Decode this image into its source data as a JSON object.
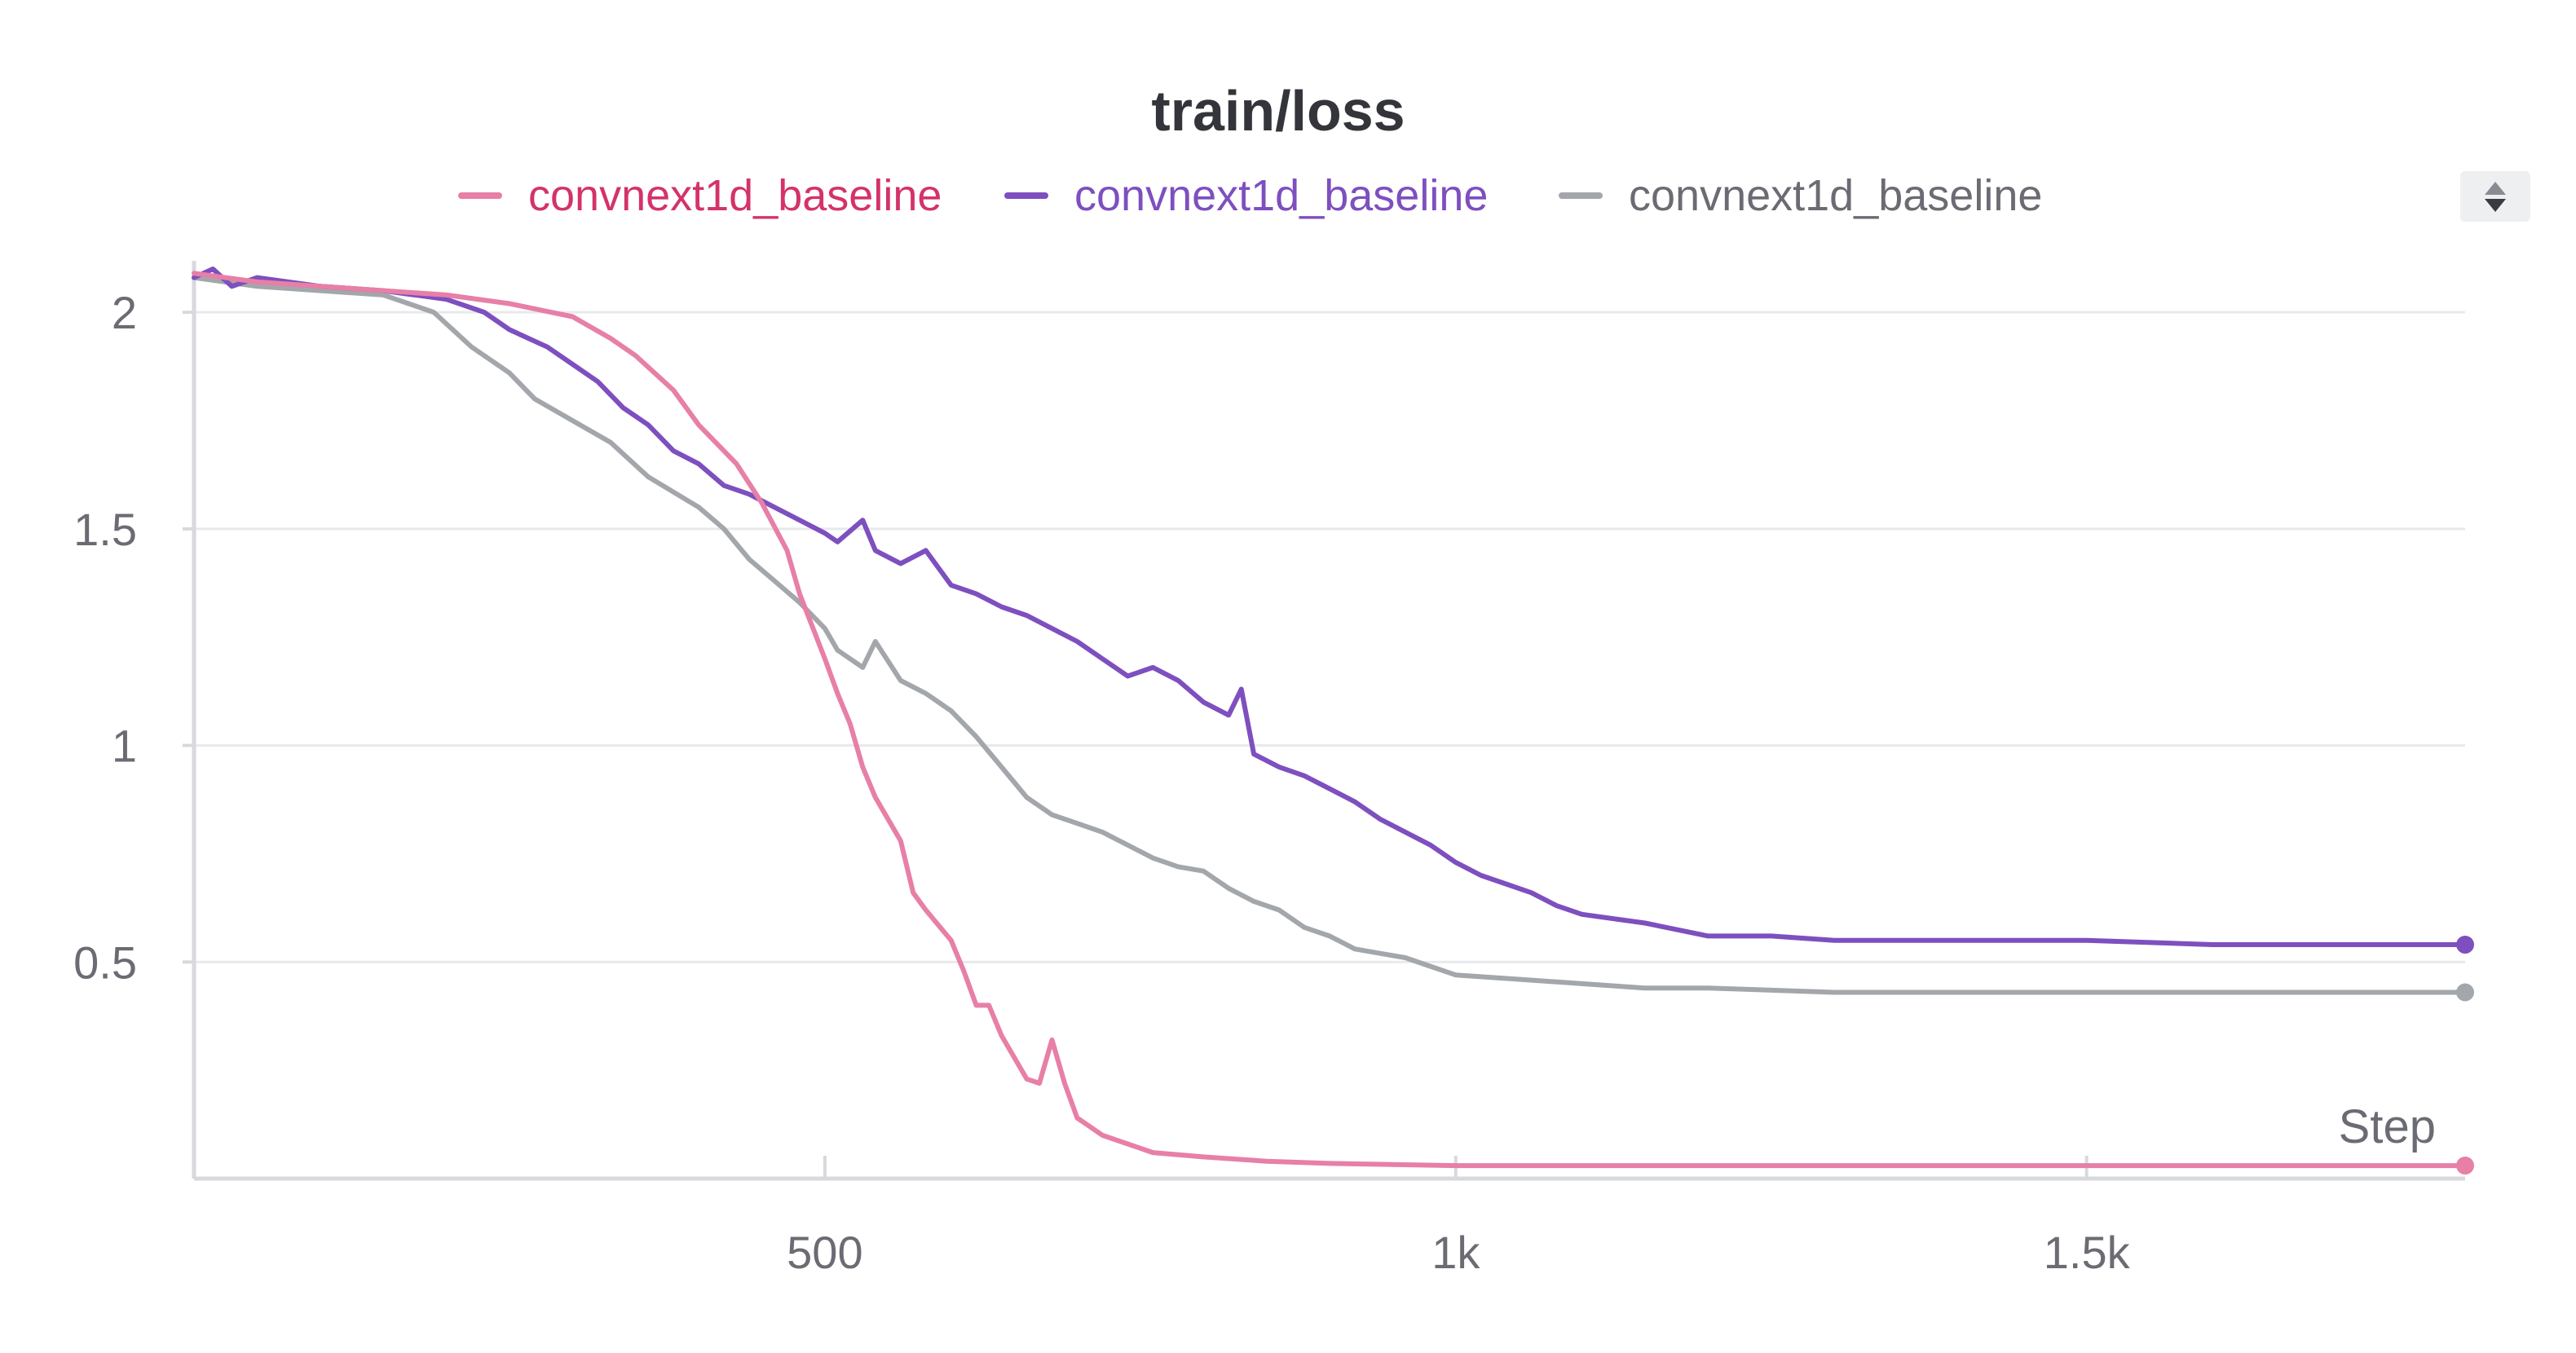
{
  "chart_data": {
    "type": "line",
    "title": "train/loss",
    "xlabel": "Step",
    "ylabel": "",
    "xlim": [
      0,
      1800
    ],
    "ylim": [
      0,
      2.1
    ],
    "y_ticks": [
      {
        "v": 0.5,
        "label": "0.5"
      },
      {
        "v": 1,
        "label": "1"
      },
      {
        "v": 1.5,
        "label": "1.5"
      },
      {
        "v": 2,
        "label": "2"
      }
    ],
    "x_ticks": [
      {
        "v": 500,
        "label": "500"
      },
      {
        "v": 1000,
        "label": "1k"
      },
      {
        "v": 1500,
        "label": "1.5k"
      }
    ],
    "grid": true,
    "legend_position": "top",
    "series": [
      {
        "name": "convnext1d_baseline",
        "color": "#e77fa7",
        "label_color": "#d4326b",
        "points": [
          [
            0,
            2.09
          ],
          [
            50,
            2.07
          ],
          [
            100,
            2.06
          ],
          [
            150,
            2.05
          ],
          [
            200,
            2.04
          ],
          [
            250,
            2.02
          ],
          [
            300,
            1.99
          ],
          [
            330,
            1.94
          ],
          [
            350,
            1.9
          ],
          [
            380,
            1.82
          ],
          [
            400,
            1.74
          ],
          [
            430,
            1.65
          ],
          [
            450,
            1.56
          ],
          [
            470,
            1.45
          ],
          [
            480,
            1.35
          ],
          [
            500,
            1.2
          ],
          [
            510,
            1.12
          ],
          [
            520,
            1.05
          ],
          [
            530,
            0.95
          ],
          [
            540,
            0.88
          ],
          [
            560,
            0.78
          ],
          [
            570,
            0.66
          ],
          [
            580,
            0.62
          ],
          [
            600,
            0.55
          ],
          [
            610,
            0.48
          ],
          [
            620,
            0.4
          ],
          [
            630,
            0.4
          ],
          [
            640,
            0.33
          ],
          [
            650,
            0.28
          ],
          [
            660,
            0.23
          ],
          [
            670,
            0.22
          ],
          [
            680,
            0.32
          ],
          [
            690,
            0.22
          ],
          [
            700,
            0.14
          ],
          [
            710,
            0.12
          ],
          [
            720,
            0.1
          ],
          [
            740,
            0.08
          ],
          [
            760,
            0.06
          ],
          [
            800,
            0.05
          ],
          [
            850,
            0.04
          ],
          [
            900,
            0.035
          ],
          [
            1000,
            0.03
          ],
          [
            1200,
            0.03
          ],
          [
            1500,
            0.03
          ],
          [
            1800,
            0.03
          ]
        ]
      },
      {
        "name": "convnext1d_baseline",
        "color": "#7e4fbf",
        "label_color": "#7e4fbf",
        "points": [
          [
            0,
            2.08
          ],
          [
            15,
            2.1
          ],
          [
            30,
            2.06
          ],
          [
            50,
            2.08
          ],
          [
            100,
            2.06
          ],
          [
            150,
            2.05
          ],
          [
            200,
            2.03
          ],
          [
            230,
            2.0
          ],
          [
            250,
            1.96
          ],
          [
            280,
            1.92
          ],
          [
            300,
            1.88
          ],
          [
            320,
            1.84
          ],
          [
            340,
            1.78
          ],
          [
            360,
            1.74
          ],
          [
            380,
            1.68
          ],
          [
            400,
            1.65
          ],
          [
            420,
            1.6
          ],
          [
            440,
            1.58
          ],
          [
            460,
            1.55
          ],
          [
            480,
            1.52
          ],
          [
            500,
            1.49
          ],
          [
            510,
            1.47
          ],
          [
            530,
            1.52
          ],
          [
            540,
            1.45
          ],
          [
            560,
            1.42
          ],
          [
            580,
            1.45
          ],
          [
            600,
            1.37
          ],
          [
            620,
            1.35
          ],
          [
            640,
            1.32
          ],
          [
            660,
            1.3
          ],
          [
            680,
            1.27
          ],
          [
            700,
            1.24
          ],
          [
            720,
            1.2
          ],
          [
            740,
            1.16
          ],
          [
            760,
            1.18
          ],
          [
            780,
            1.15
          ],
          [
            800,
            1.1
          ],
          [
            820,
            1.07
          ],
          [
            830,
            1.13
          ],
          [
            840,
            0.98
          ],
          [
            860,
            0.95
          ],
          [
            880,
            0.93
          ],
          [
            900,
            0.9
          ],
          [
            920,
            0.87
          ],
          [
            940,
            0.83
          ],
          [
            960,
            0.8
          ],
          [
            980,
            0.77
          ],
          [
            1000,
            0.73
          ],
          [
            1020,
            0.7
          ],
          [
            1040,
            0.68
          ],
          [
            1060,
            0.66
          ],
          [
            1080,
            0.63
          ],
          [
            1100,
            0.61
          ],
          [
            1150,
            0.59
          ],
          [
            1200,
            0.56
          ],
          [
            1250,
            0.56
          ],
          [
            1300,
            0.55
          ],
          [
            1400,
            0.55
          ],
          [
            1500,
            0.55
          ],
          [
            1600,
            0.54
          ],
          [
            1700,
            0.54
          ],
          [
            1800,
            0.54
          ]
        ]
      },
      {
        "name": "convnext1d_baseline",
        "color": "#a3a7ab",
        "label_color": "#6b6c73",
        "points": [
          [
            0,
            2.08
          ],
          [
            50,
            2.06
          ],
          [
            100,
            2.05
          ],
          [
            150,
            2.04
          ],
          [
            190,
            2.0
          ],
          [
            220,
            1.92
          ],
          [
            250,
            1.86
          ],
          [
            270,
            1.8
          ],
          [
            300,
            1.75
          ],
          [
            330,
            1.7
          ],
          [
            360,
            1.62
          ],
          [
            400,
            1.55
          ],
          [
            420,
            1.5
          ],
          [
            440,
            1.43
          ],
          [
            460,
            1.38
          ],
          [
            480,
            1.33
          ],
          [
            500,
            1.27
          ],
          [
            510,
            1.22
          ],
          [
            530,
            1.18
          ],
          [
            540,
            1.24
          ],
          [
            560,
            1.15
          ],
          [
            580,
            1.12
          ],
          [
            600,
            1.08
          ],
          [
            620,
            1.02
          ],
          [
            640,
            0.95
          ],
          [
            660,
            0.88
          ],
          [
            680,
            0.84
          ],
          [
            700,
            0.82
          ],
          [
            720,
            0.8
          ],
          [
            740,
            0.77
          ],
          [
            760,
            0.74
          ],
          [
            780,
            0.72
          ],
          [
            800,
            0.71
          ],
          [
            820,
            0.67
          ],
          [
            840,
            0.64
          ],
          [
            860,
            0.62
          ],
          [
            880,
            0.58
          ],
          [
            900,
            0.56
          ],
          [
            920,
            0.53
          ],
          [
            940,
            0.52
          ],
          [
            960,
            0.51
          ],
          [
            980,
            0.49
          ],
          [
            1000,
            0.47
          ],
          [
            1050,
            0.46
          ],
          [
            1100,
            0.45
          ],
          [
            1150,
            0.44
          ],
          [
            1200,
            0.44
          ],
          [
            1300,
            0.43
          ],
          [
            1400,
            0.43
          ],
          [
            1500,
            0.43
          ],
          [
            1600,
            0.43
          ],
          [
            1700,
            0.43
          ],
          [
            1800,
            0.43
          ]
        ]
      }
    ]
  },
  "legend_control": {
    "icon": "sort-arrows-icon"
  }
}
